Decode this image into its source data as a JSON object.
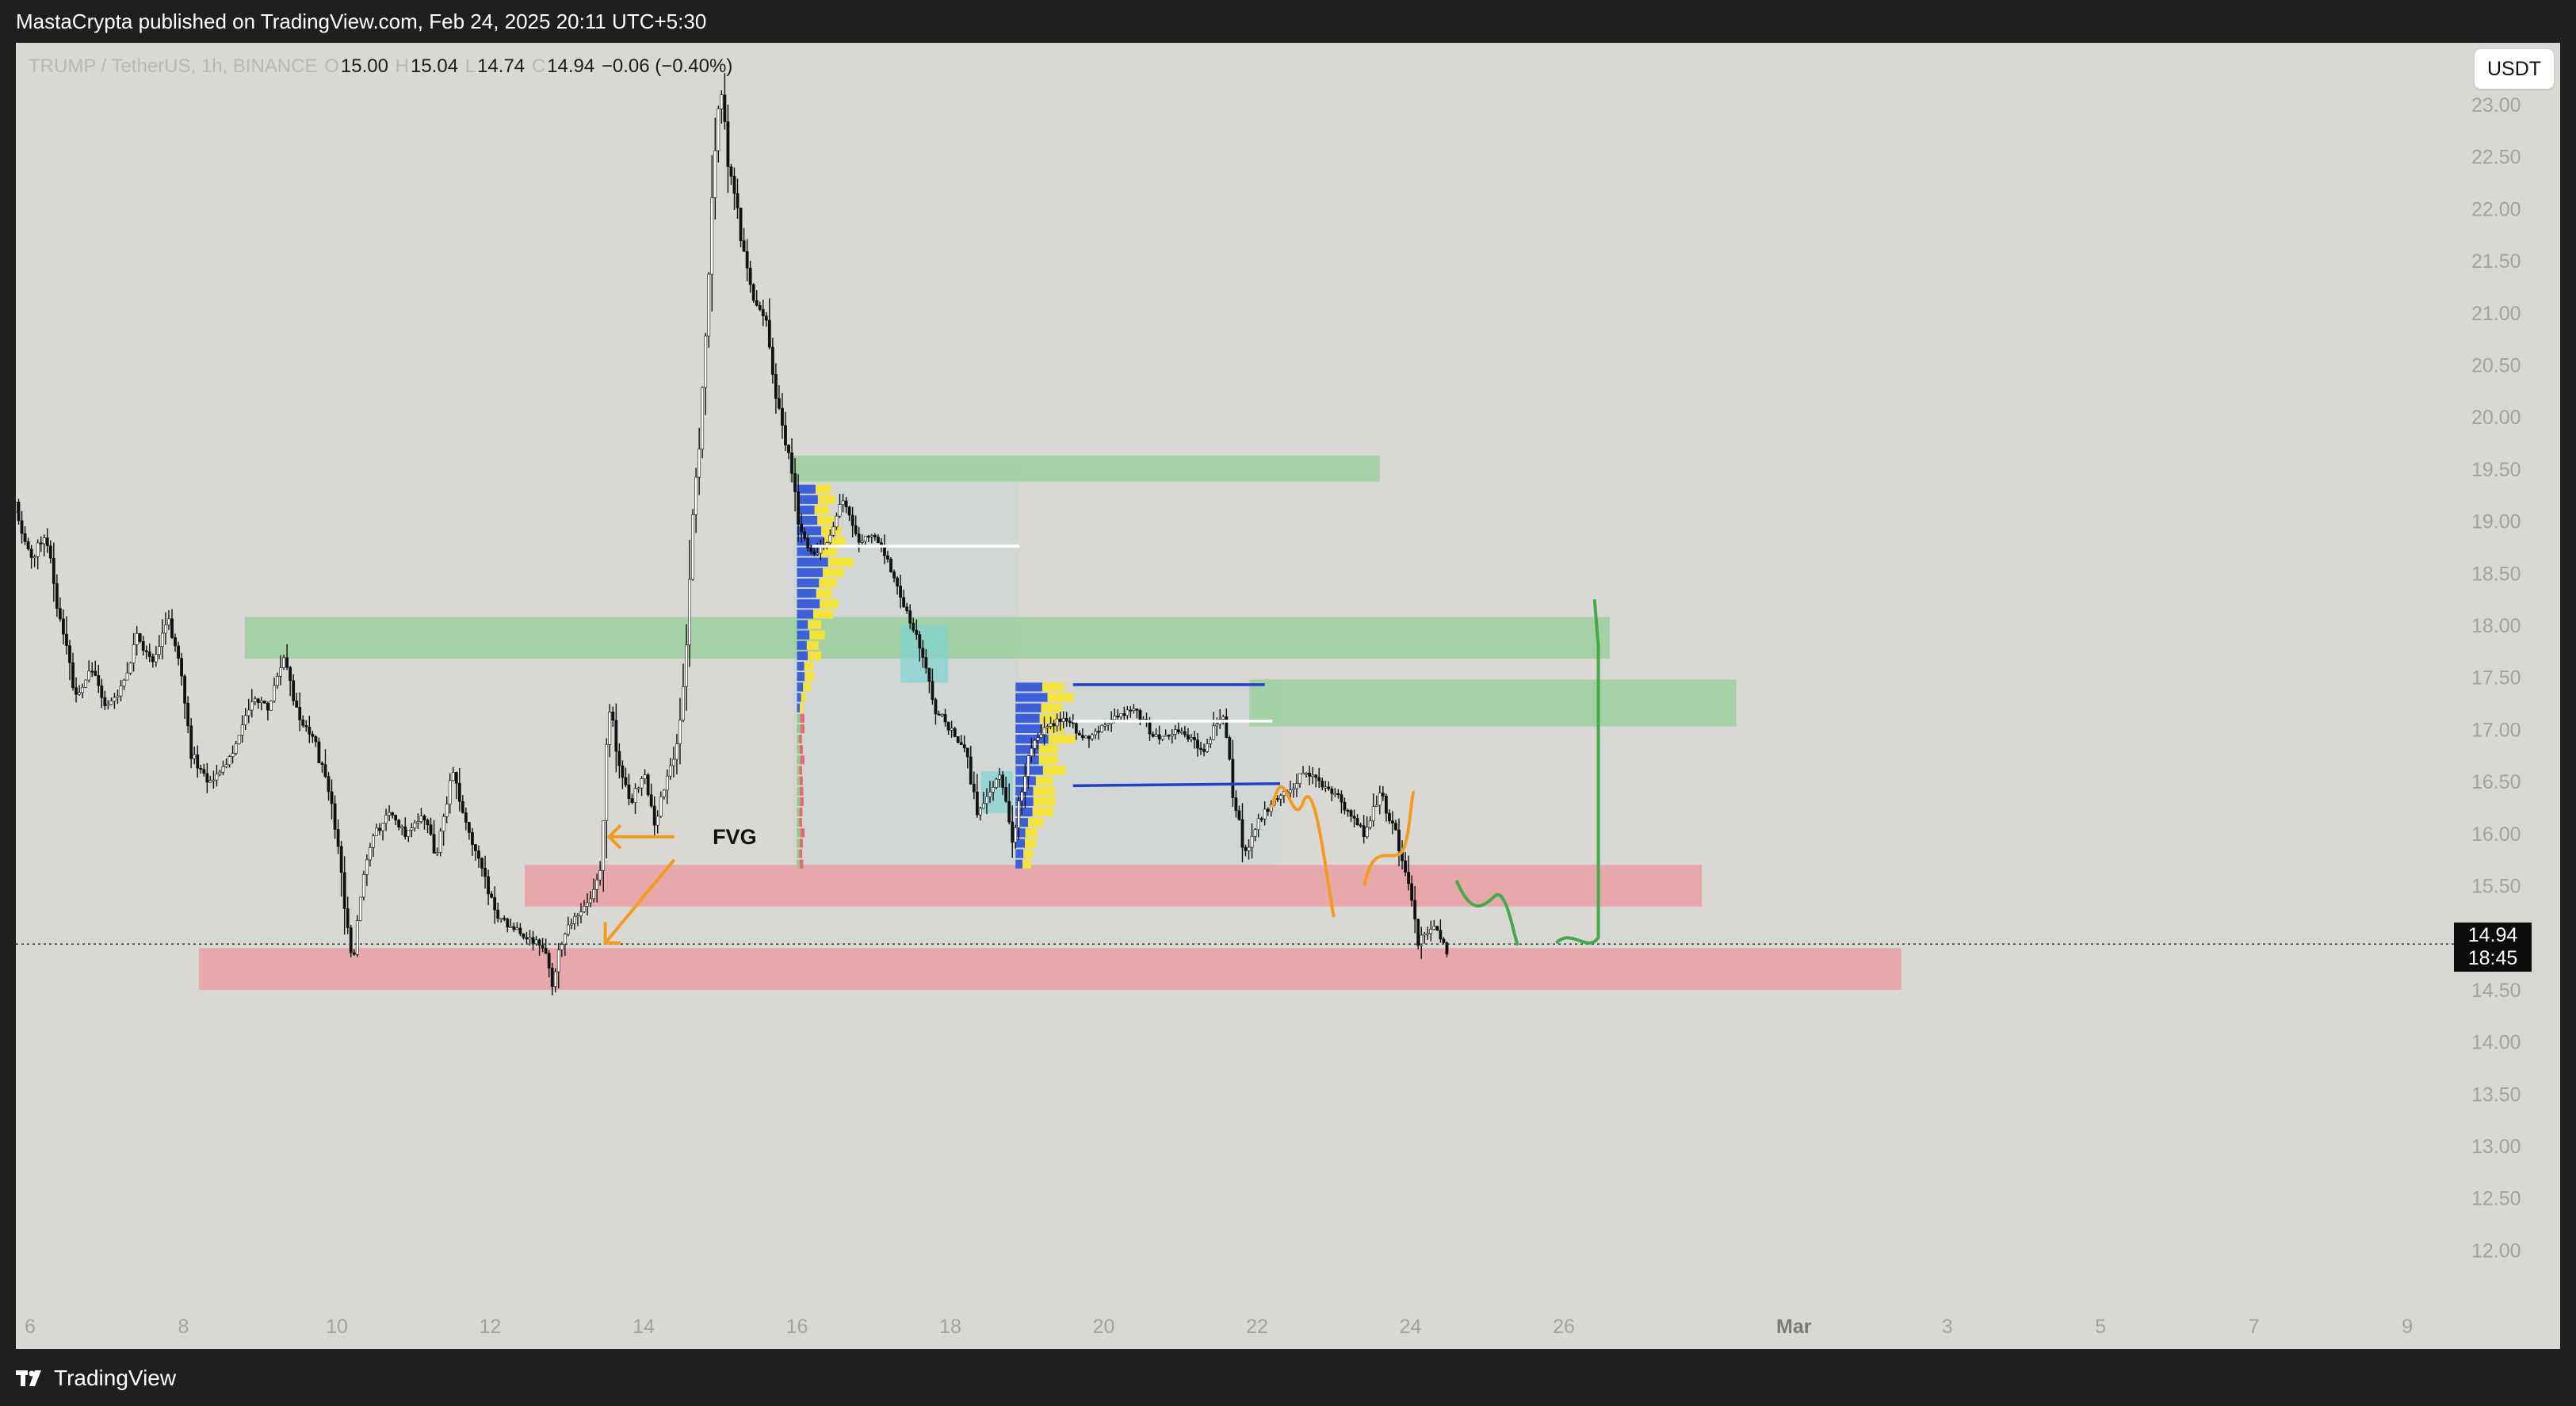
{
  "header": {
    "publisher_line": "MastaCrypta published on TradingView.com, Feb 24, 2025 20:11 UTC+5:30"
  },
  "legend": {
    "symbol": "TRUMP / TetherUS, 1h, BINANCE",
    "o_label": "O",
    "o_value": "15.00",
    "h_label": "H",
    "h_value": "15.04",
    "l_label": "L",
    "l_value": "14.74",
    "c_label": "C",
    "c_value": "14.94",
    "change": "−0.06 (−0.40%)"
  },
  "currency_button": "USDT",
  "current_price": {
    "price": "14.94",
    "countdown": "18:45"
  },
  "footer": {
    "brand": "TradingView"
  },
  "colors": {
    "chart_bg": "#d9d8d4",
    "demand_zone": "#e7a0a3",
    "supply_zone": "#9ccf9c",
    "arrow_orange": "#f39a1f",
    "path_green": "#45a94a",
    "range_blue": "#2140c8",
    "volume_blue": "#3d5fd8",
    "volume_yellow": "#f5e33d",
    "volume_red": "#e36b6f",
    "volume_green": "#94c98f",
    "volume_cyan": "#7fd3d0",
    "flash_purple": "#7a2bd3"
  },
  "icons": {
    "flash": "lightning-icon",
    "logo": "tradingview-logo-icon"
  },
  "chart_data": {
    "type": "candlestick",
    "title": "",
    "xlabel": "",
    "ylabel": "",
    "x_unit": "day (Feb 2025 – Mar 2025)",
    "xlim": [
      5.6,
      9.7
    ],
    "ylim": [
      11.85,
      23.35
    ],
    "y_ticks": [
      "23.00",
      "22.50",
      "22.00",
      "21.50",
      "21.00",
      "20.50",
      "20.00",
      "19.50",
      "19.00",
      "18.50",
      "18.00",
      "17.50",
      "17.00",
      "16.50",
      "16.00",
      "15.50",
      "15.00",
      "14.50",
      "14.00",
      "13.50",
      "13.00",
      "12.50",
      "12.00"
    ],
    "x_tick_labels": [
      "6",
      "8",
      "10",
      "12",
      "14",
      "16",
      "18",
      "20",
      "22",
      "24",
      "26",
      "Mar",
      "3",
      "5",
      "7",
      "9"
    ],
    "grid": false,
    "price_path": [
      [
        5.6,
        18.5
      ],
      [
        5.8,
        19.2
      ],
      [
        6.0,
        18.6
      ],
      [
        6.2,
        18.9
      ],
      [
        6.4,
        18.0
      ],
      [
        6.6,
        17.3
      ],
      [
        6.8,
        17.6
      ],
      [
        7.0,
        17.2
      ],
      [
        7.2,
        17.4
      ],
      [
        7.4,
        17.9
      ],
      [
        7.6,
        17.6
      ],
      [
        7.8,
        18.1
      ],
      [
        8.0,
        17.4
      ],
      [
        8.1,
        16.8
      ],
      [
        8.3,
        16.5
      ],
      [
        8.5,
        16.6
      ],
      [
        8.7,
        16.9
      ],
      [
        8.9,
        17.3
      ],
      [
        9.1,
        17.2
      ],
      [
        9.3,
        17.7
      ],
      [
        9.5,
        17.1
      ],
      [
        9.7,
        16.9
      ],
      [
        9.9,
        16.4
      ],
      [
        10.0,
        16.0
      ],
      [
        10.1,
        15.3
      ],
      [
        10.2,
        14.7
      ],
      [
        10.35,
        15.6
      ],
      [
        10.5,
        16.0
      ],
      [
        10.7,
        16.2
      ],
      [
        10.9,
        16.0
      ],
      [
        11.1,
        16.2
      ],
      [
        11.3,
        15.8
      ],
      [
        11.5,
        16.6
      ],
      [
        11.7,
        16.1
      ],
      [
        11.9,
        15.6
      ],
      [
        12.1,
        15.2
      ],
      [
        12.3,
        15.1
      ],
      [
        12.5,
        15.0
      ],
      [
        12.7,
        14.9
      ],
      [
        12.8,
        14.55
      ],
      [
        12.95,
        15.0
      ],
      [
        13.1,
        15.2
      ],
      [
        13.3,
        15.4
      ],
      [
        13.45,
        15.7
      ],
      [
        13.55,
        17.3
      ],
      [
        13.7,
        16.6
      ],
      [
        13.85,
        16.3
      ],
      [
        14.0,
        16.6
      ],
      [
        14.15,
        16.1
      ],
      [
        14.3,
        16.5
      ],
      [
        14.45,
        16.9
      ],
      [
        14.55,
        17.7
      ],
      [
        14.65,
        19.2
      ],
      [
        14.75,
        20.0
      ],
      [
        14.85,
        21.6
      ],
      [
        14.95,
        22.9
      ],
      [
        15.0,
        23.3
      ],
      [
        15.1,
        22.4
      ],
      [
        15.2,
        22.1
      ],
      [
        15.3,
        21.6
      ],
      [
        15.45,
        21.1
      ],
      [
        15.6,
        20.9
      ],
      [
        15.75,
        20.1
      ],
      [
        15.9,
        19.6
      ],
      [
        16.05,
        18.9
      ],
      [
        16.2,
        18.7
      ],
      [
        16.4,
        18.8
      ],
      [
        16.6,
        19.2
      ],
      [
        16.8,
        18.8
      ],
      [
        17.0,
        18.9
      ],
      [
        17.2,
        18.6
      ],
      [
        17.35,
        18.3
      ],
      [
        17.5,
        18.0
      ],
      [
        17.65,
        17.7
      ],
      [
        17.8,
        17.2
      ],
      [
        18.0,
        17.0
      ],
      [
        18.2,
        16.8
      ],
      [
        18.35,
        16.2
      ],
      [
        18.5,
        16.4
      ],
      [
        18.65,
        16.6
      ],
      [
        18.8,
        15.9
      ],
      [
        18.9,
        16.3
      ],
      [
        19.05,
        16.8
      ],
      [
        19.2,
        17.0
      ],
      [
        19.5,
        17.1
      ],
      [
        19.8,
        16.9
      ],
      [
        20.1,
        17.1
      ],
      [
        20.4,
        17.2
      ],
      [
        20.7,
        16.9
      ],
      [
        21.0,
        17.0
      ],
      [
        21.3,
        16.8
      ],
      [
        21.55,
        17.2
      ],
      [
        21.7,
        16.3
      ],
      [
        21.85,
        15.8
      ],
      [
        22.0,
        16.1
      ],
      [
        22.2,
        16.3
      ],
      [
        22.4,
        16.4
      ],
      [
        22.6,
        16.6
      ],
      [
        22.8,
        16.5
      ],
      [
        23.0,
        16.4
      ],
      [
        23.2,
        16.2
      ],
      [
        23.4,
        16.0
      ],
      [
        23.6,
        16.4
      ],
      [
        23.8,
        16.0
      ],
      [
        24.0,
        15.4
      ],
      [
        24.1,
        15.0
      ],
      [
        24.3,
        15.1
      ],
      [
        24.5,
        14.85
      ]
    ],
    "zones": [
      {
        "type": "supply",
        "x1": 15.9,
        "x2": 23.6,
        "y1": 19.38,
        "y2": 19.63
      },
      {
        "type": "supply",
        "x1": 8.8,
        "x2": 26.6,
        "y1": 17.68,
        "y2": 18.08
      },
      {
        "type": "supply",
        "x1": 21.9,
        "x2": 28.25,
        "y1": 17.03,
        "y2": 17.48
      },
      {
        "type": "demand",
        "x1": 12.45,
        "x2": 27.8,
        "y1": 15.3,
        "y2": 15.7
      },
      {
        "type": "demand",
        "x1": 8.2,
        "x2": 30.4,
        "y1": 14.5,
        "y2": 14.9
      }
    ],
    "range_lines": [
      {
        "color": "blue",
        "x1": 19.6,
        "x2": 22.1,
        "y1": 17.43,
        "y2": 17.43
      },
      {
        "color": "blue",
        "x1": 19.6,
        "x2": 22.3,
        "y1": 16.46,
        "y2": 16.48
      },
      {
        "color": "white",
        "x1": 19.6,
        "x2": 22.2,
        "y1": 17.08,
        "y2": 17.08
      },
      {
        "color": "white",
        "x1": 16.2,
        "x2": 18.9,
        "y1": 18.76,
        "y2": 18.76
      }
    ],
    "annotations": [
      {
        "text": "FVG",
        "x": 14.9,
        "y": 15.9
      }
    ],
    "last_price": 14.94
  }
}
